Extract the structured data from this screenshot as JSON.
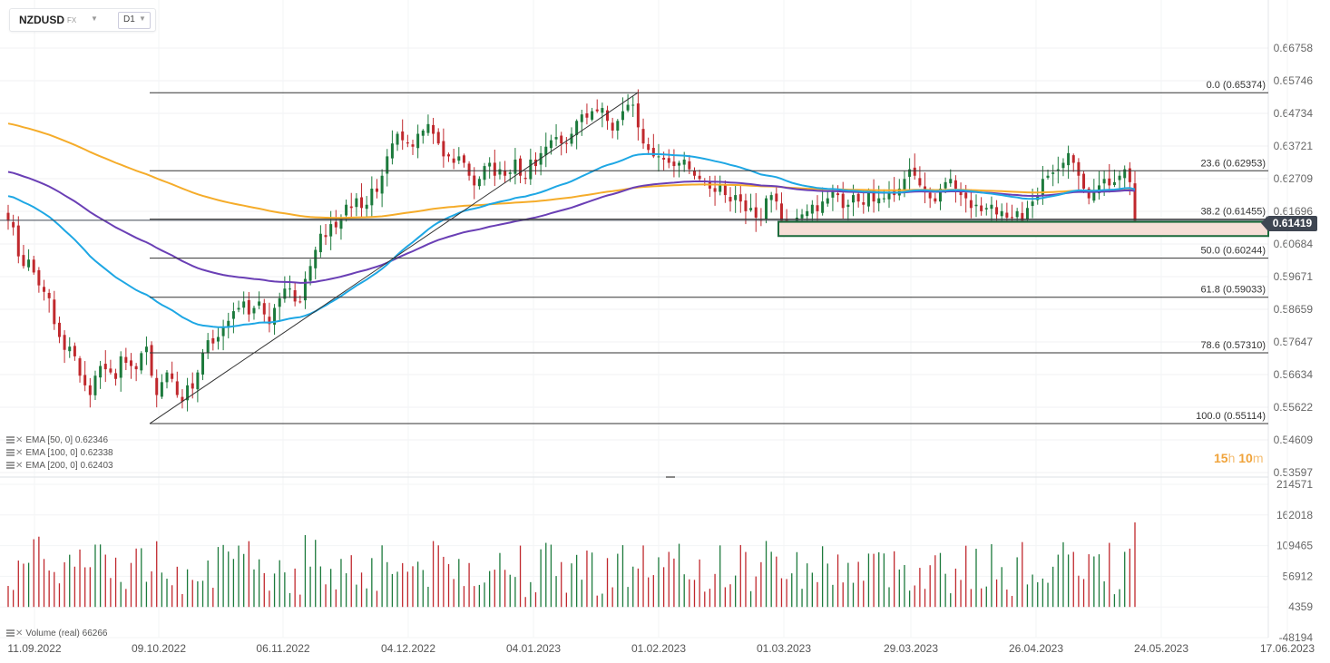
{
  "header": {
    "symbol": "NZDUSD",
    "asset_class": "FX",
    "timeframe": "D1"
  },
  "current_price": "0.61419",
  "timer": {
    "hours": "15",
    "h_unit": "h",
    "minutes": "10",
    "m_unit": "m"
  },
  "indicators": [
    {
      "label": "EMA [50, 0]",
      "value": "0.62346"
    },
    {
      "label": "EMA [100, 0]",
      "value": "0.62338"
    },
    {
      "label": "EMA [200, 0]",
      "value": "0.62403"
    }
  ],
  "volume_indicator": {
    "label": "Volume (real)",
    "value": "66266"
  },
  "colors": {
    "up": "#1c7a3c",
    "down": "#c0282d",
    "ema50": "#1ea7e4",
    "ema100": "#6a3fb5",
    "ema200": "#f5ac2a",
    "zone_fill": "#f6ded6",
    "zone_border": "#1c6b3c"
  },
  "chart_data": {
    "type": "candlestick",
    "price_axis_labels": [
      "0.66758",
      "0.65746",
      "0.64734",
      "0.63721",
      "0.62709",
      "0.61696",
      "0.60684",
      "0.59671",
      "0.58659",
      "0.57647",
      "0.56634",
      "0.55622",
      "0.54609",
      "0.53597"
    ],
    "volume_axis_labels": [
      "214571",
      "162018",
      "109465",
      "56912",
      "4359",
      "-48194"
    ],
    "date_labels": [
      "11.09.2022",
      "09.10.2022",
      "06.11.2022",
      "04.12.2022",
      "04.01.2023",
      "01.02.2023",
      "01.03.2023",
      "29.03.2023",
      "26.04.2023",
      "24.05.2023",
      "17.06.2023"
    ],
    "fibonacci": [
      {
        "label": "0.0 (0.65374)",
        "price": 0.65374
      },
      {
        "label": "23.6 (0.62953)",
        "price": 0.62953
      },
      {
        "label": "38.2 (0.61455)",
        "price": 0.61455
      },
      {
        "label": "50.0 (0.60244)",
        "price": 0.60244
      },
      {
        "label": "61.8 (0.59033)",
        "price": 0.59033
      },
      {
        "label": "78.6 (0.57310)",
        "price": 0.5731
      },
      {
        "label": "100.0 (0.55114)",
        "price": 0.55114
      }
    ],
    "zone": {
      "top": 0.6137,
      "bottom": 0.6093
    },
    "trendline": {
      "from": {
        "date": "13.10.2022",
        "price": 0.55114
      },
      "to": {
        "date": "02.02.2023",
        "price": 0.65374
      }
    },
    "close_series": [
      0.614,
      0.612,
      0.603,
      0.6,
      0.602,
      0.598,
      0.594,
      0.592,
      0.59,
      0.582,
      0.578,
      0.574,
      0.575,
      0.572,
      0.566,
      0.563,
      0.56,
      0.566,
      0.569,
      0.568,
      0.567,
      0.565,
      0.572,
      0.57,
      0.569,
      0.568,
      0.573,
      0.575,
      0.566,
      0.56,
      0.564,
      0.567,
      0.565,
      0.56,
      0.558,
      0.563,
      0.562,
      0.567,
      0.573,
      0.577,
      0.576,
      0.578,
      0.581,
      0.583,
      0.586,
      0.587,
      0.589,
      0.585,
      0.587,
      0.589,
      0.585,
      0.582,
      0.587,
      0.59,
      0.593,
      0.593,
      0.589,
      0.589,
      0.596,
      0.6,
      0.605,
      0.61,
      0.609,
      0.613,
      0.612,
      0.615,
      0.619,
      0.618,
      0.621,
      0.618,
      0.619,
      0.624,
      0.623,
      0.628,
      0.634,
      0.638,
      0.641,
      0.639,
      0.638,
      0.637,
      0.641,
      0.642,
      0.644,
      0.641,
      0.638,
      0.634,
      0.634,
      0.632,
      0.634,
      0.632,
      0.628,
      0.625,
      0.627,
      0.631,
      0.632,
      0.628,
      0.63,
      0.628,
      0.629,
      0.633,
      0.628,
      0.627,
      0.633,
      0.631,
      0.635,
      0.637,
      0.639,
      0.64,
      0.638,
      0.638,
      0.641,
      0.645,
      0.647,
      0.646,
      0.648,
      0.648,
      0.649,
      0.645,
      0.642,
      0.645,
      0.648,
      0.65,
      0.65,
      0.643,
      0.638,
      0.636,
      0.634,
      0.634,
      0.633,
      0.632,
      0.631,
      0.632,
      0.633,
      0.63,
      0.628,
      0.627,
      0.626,
      0.624,
      0.623,
      0.625,
      0.622,
      0.62,
      0.622,
      0.62,
      0.617,
      0.618,
      0.615,
      0.614,
      0.621,
      0.622,
      0.62,
      0.614,
      0.611,
      0.612,
      0.615,
      0.616,
      0.617,
      0.619,
      0.617,
      0.62,
      0.621,
      0.623,
      0.622,
      0.618,
      0.619,
      0.622,
      0.62,
      0.619,
      0.623,
      0.62,
      0.621,
      0.621,
      0.623,
      0.622,
      0.624,
      0.627,
      0.63,
      0.628,
      0.625,
      0.623,
      0.621,
      0.62,
      0.624,
      0.626,
      0.627,
      0.624,
      0.622,
      0.621,
      0.618,
      0.619,
      0.617,
      0.618,
      0.619,
      0.616,
      0.617,
      0.615,
      0.615,
      0.617,
      0.614,
      0.618,
      0.62,
      0.622,
      0.627,
      0.628,
      0.629,
      0.63,
      0.632,
      0.635,
      0.632,
      0.628,
      0.624,
      0.621,
      0.623,
      0.625,
      0.627,
      0.625,
      0.626,
      0.628,
      0.63,
      0.626,
      0.614
    ]
  }
}
